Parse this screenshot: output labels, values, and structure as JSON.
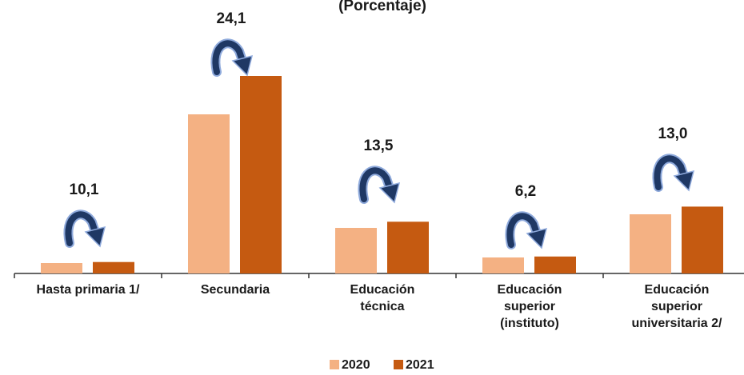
{
  "chart_data": {
    "type": "bar",
    "title": "(Porcentaje)",
    "categories": [
      "Hasta primaria 1/",
      "Secundaria",
      "Educación técnica",
      "Educación superior (instituto)",
      "Educación superior universitaria 2/"
    ],
    "series": [
      {
        "name": "2020",
        "color": "#f4b183",
        "values": [
          13,
          199,
          57,
          20,
          74
        ]
      },
      {
        "name": "2021",
        "color": "#c55a11",
        "values": [
          14.3,
          247,
          64.7,
          21.2,
          83.6
        ]
      }
    ],
    "annotations": [
      "10,1",
      "24,1",
      "13,5",
      "6,2",
      "13,0"
    ],
    "ylim": [
      0,
      260
    ],
    "legend": "bottom"
  }
}
